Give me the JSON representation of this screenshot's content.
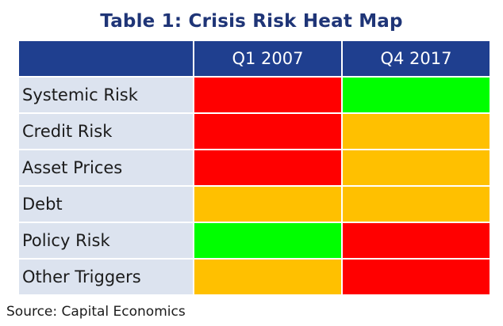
{
  "chart_data": {
    "type": "heatmap",
    "title": "Table 1: Crisis Risk Heat Map",
    "columns": [
      "Q1 2007",
      "Q4 2017"
    ],
    "rows": [
      "Systemic Risk",
      "Credit Risk",
      "Asset Prices",
      "Debt",
      "Policy Risk",
      "Other Triggers"
    ],
    "values": [
      [
        "high",
        "low"
      ],
      [
        "high",
        "medium"
      ],
      [
        "high",
        "medium"
      ],
      [
        "medium",
        "medium"
      ],
      [
        "low",
        "high"
      ],
      [
        "medium",
        "high"
      ]
    ],
    "color_scale": {
      "high": "#ff0000",
      "medium": "#ffc000",
      "low": "#00ff00"
    },
    "source": "Source: Capital Economics"
  }
}
